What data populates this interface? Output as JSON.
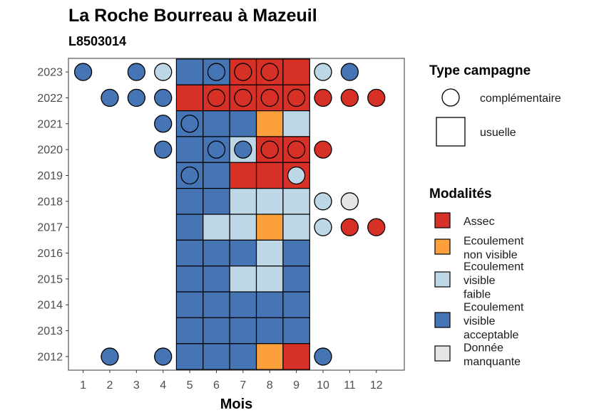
{
  "chart_data": {
    "type": "heatmap",
    "title": "La Roche Bourreau à Mazeuil",
    "subtitle": "L8503014",
    "xlabel": "Mois",
    "ylabel": "",
    "x": [
      1,
      2,
      3,
      4,
      5,
      6,
      7,
      8,
      9,
      10,
      11,
      12
    ],
    "y": [
      2012,
      2013,
      2014,
      2015,
      2016,
      2017,
      2018,
      2019,
      2020,
      2021,
      2022,
      2023
    ],
    "legend_shape": {
      "title": "Type campagne",
      "entries": [
        {
          "key": "complementaire",
          "label": "complémentaire",
          "shape": "circle"
        },
        {
          "key": "usuelle",
          "label": "usuelle",
          "shape": "square"
        }
      ]
    },
    "legend_fill": {
      "title": "Modalités",
      "entries": [
        {
          "key": "assec",
          "lines": [
            "Assec"
          ],
          "color": "#D73027"
        },
        {
          "key": "ecoulement_non_visible",
          "lines": [
            "Ecoulement",
            "non visible"
          ],
          "color": "#FDA03C"
        },
        {
          "key": "ecoulement_visible_faible",
          "lines": [
            "Ecoulement",
            "visible",
            "faible"
          ],
          "color": "#BDD7E7"
        },
        {
          "key": "ecoulement_visible_acceptable",
          "lines": [
            "Ecoulement",
            "visible",
            "acceptable"
          ],
          "color": "#4575B4"
        },
        {
          "key": "donnee_manquante",
          "lines": [
            "Donnée",
            "manquante"
          ],
          "color": "#E5E5E5"
        }
      ]
    },
    "usuelle": [
      {
        "year": 2023,
        "values": [
          "ecoulement_visible_acceptable",
          "ecoulement_visible_acceptable",
          "assec",
          "assec",
          "assec"
        ]
      },
      {
        "year": 2022,
        "values": [
          "assec",
          "assec",
          "assec",
          "assec",
          "assec"
        ]
      },
      {
        "year": 2021,
        "values": [
          "ecoulement_visible_acceptable",
          "ecoulement_visible_acceptable",
          "ecoulement_visible_acceptable",
          "ecoulement_non_visible",
          "ecoulement_visible_faible"
        ]
      },
      {
        "year": 2020,
        "values": [
          "ecoulement_visible_acceptable",
          "ecoulement_visible_acceptable",
          "ecoulement_visible_faible",
          "assec",
          "assec"
        ]
      },
      {
        "year": 2019,
        "values": [
          "ecoulement_visible_acceptable",
          "ecoulement_visible_acceptable",
          "assec",
          "assec",
          "assec"
        ]
      },
      {
        "year": 2018,
        "values": [
          "ecoulement_visible_acceptable",
          "ecoulement_visible_acceptable",
          "ecoulement_visible_faible",
          "ecoulement_visible_faible",
          "ecoulement_visible_faible"
        ]
      },
      {
        "year": 2017,
        "values": [
          "ecoulement_visible_acceptable",
          "ecoulement_visible_faible",
          "ecoulement_visible_faible",
          "ecoulement_non_visible",
          "ecoulement_visible_faible"
        ]
      },
      {
        "year": 2016,
        "values": [
          "ecoulement_visible_acceptable",
          "ecoulement_visible_acceptable",
          "ecoulement_visible_acceptable",
          "ecoulement_visible_faible",
          "ecoulement_visible_acceptable"
        ]
      },
      {
        "year": 2015,
        "values": [
          "ecoulement_visible_acceptable",
          "ecoulement_visible_acceptable",
          "ecoulement_visible_faible",
          "ecoulement_visible_faible",
          "ecoulement_visible_acceptable"
        ]
      },
      {
        "year": 2014,
        "values": [
          "ecoulement_visible_acceptable",
          "ecoulement_visible_acceptable",
          "ecoulement_visible_acceptable",
          "ecoulement_visible_acceptable",
          "ecoulement_visible_acceptable"
        ]
      },
      {
        "year": 2013,
        "values": [
          "ecoulement_visible_acceptable",
          "ecoulement_visible_acceptable",
          "ecoulement_visible_acceptable",
          "ecoulement_visible_acceptable",
          "ecoulement_visible_acceptable"
        ]
      },
      {
        "year": 2012,
        "values": [
          "ecoulement_visible_acceptable",
          "ecoulement_visible_acceptable",
          "ecoulement_visible_acceptable",
          "ecoulement_non_visible",
          "assec"
        ]
      }
    ],
    "usuelle_months": [
      5,
      6,
      7,
      8,
      9
    ],
    "complementaire": [
      {
        "year": 2023,
        "month": 1,
        "value": "ecoulement_visible_acceptable"
      },
      {
        "year": 2023,
        "month": 3,
        "value": "ecoulement_visible_acceptable"
      },
      {
        "year": 2023,
        "month": 4,
        "value": "ecoulement_visible_faible"
      },
      {
        "year": 2023,
        "month": 6,
        "value": "ecoulement_visible_acceptable"
      },
      {
        "year": 2023,
        "month": 7,
        "value": "assec"
      },
      {
        "year": 2023,
        "month": 8,
        "value": "assec"
      },
      {
        "year": 2023,
        "month": 10,
        "value": "ecoulement_visible_faible"
      },
      {
        "year": 2023,
        "month": 11,
        "value": "ecoulement_visible_acceptable"
      },
      {
        "year": 2022,
        "month": 2,
        "value": "ecoulement_visible_acceptable"
      },
      {
        "year": 2022,
        "month": 3,
        "value": "ecoulement_visible_acceptable"
      },
      {
        "year": 2022,
        "month": 4,
        "value": "ecoulement_visible_acceptable"
      },
      {
        "year": 2022,
        "month": 6,
        "value": "assec"
      },
      {
        "year": 2022,
        "month": 7,
        "value": "assec"
      },
      {
        "year": 2022,
        "month": 8,
        "value": "assec"
      },
      {
        "year": 2022,
        "month": 9,
        "value": "assec"
      },
      {
        "year": 2022,
        "month": 10,
        "value": "assec"
      },
      {
        "year": 2022,
        "month": 11,
        "value": "assec"
      },
      {
        "year": 2022,
        "month": 12,
        "value": "assec"
      },
      {
        "year": 2021,
        "month": 4,
        "value": "ecoulement_visible_acceptable"
      },
      {
        "year": 2021,
        "month": 5,
        "value": "ecoulement_visible_acceptable"
      },
      {
        "year": 2020,
        "month": 4,
        "value": "ecoulement_visible_acceptable"
      },
      {
        "year": 2020,
        "month": 6,
        "value": "ecoulement_visible_acceptable"
      },
      {
        "year": 2020,
        "month": 7,
        "value": "ecoulement_visible_acceptable"
      },
      {
        "year": 2020,
        "month": 8,
        "value": "assec"
      },
      {
        "year": 2020,
        "month": 9,
        "value": "assec"
      },
      {
        "year": 2020,
        "month": 10,
        "value": "assec"
      },
      {
        "year": 2019,
        "month": 5,
        "value": "ecoulement_visible_acceptable"
      },
      {
        "year": 2019,
        "month": 9,
        "value": "ecoulement_visible_faible"
      },
      {
        "year": 2018,
        "month": 10,
        "value": "ecoulement_visible_faible"
      },
      {
        "year": 2018,
        "month": 11,
        "value": "donnee_manquante"
      },
      {
        "year": 2017,
        "month": 10,
        "value": "ecoulement_visible_faible"
      },
      {
        "year": 2017,
        "month": 11,
        "value": "assec"
      },
      {
        "year": 2017,
        "month": 12,
        "value": "assec"
      },
      {
        "year": 2012,
        "month": 2,
        "value": "ecoulement_visible_acceptable"
      },
      {
        "year": 2012,
        "month": 4,
        "value": "ecoulement_visible_acceptable"
      },
      {
        "year": 2012,
        "month": 10,
        "value": "ecoulement_visible_acceptable"
      }
    ]
  }
}
